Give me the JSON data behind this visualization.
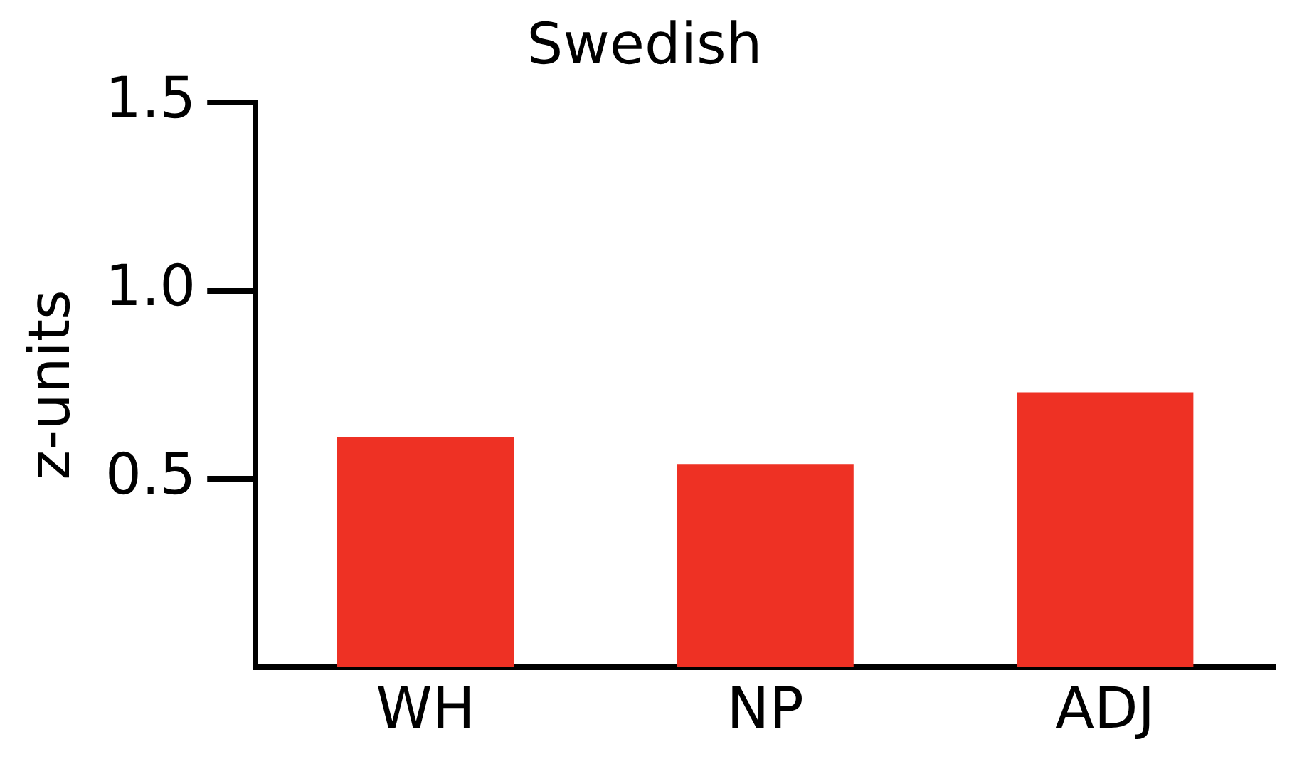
{
  "chart_data": {
    "type": "bar",
    "title": "Swedish",
    "ylabel": "z-units",
    "categories": [
      "WH",
      "NP",
      "ADJ"
    ],
    "values": [
      0.61,
      0.54,
      0.73
    ],
    "color": "#ee3124",
    "ylim": [
      0,
      1.5
    ],
    "yticks": [
      0.5,
      {
        "value": 1,
        "label": "1.0"
      },
      1.5
    ],
    "grid": false,
    "legend": false
  }
}
